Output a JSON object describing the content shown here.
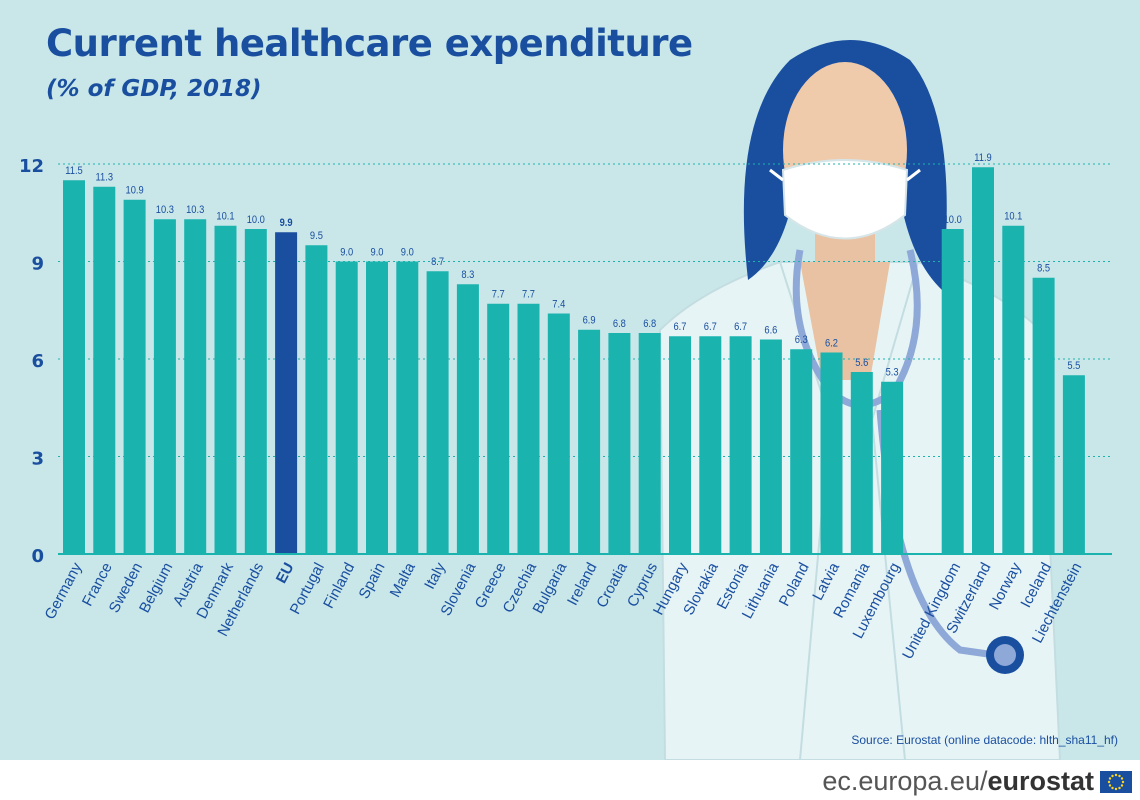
{
  "title": "Current healthcare expenditure",
  "subtitle": "(% of GDP, 2018)",
  "source": "Source:  Eurostat (online datacode: hlth_sha11_hf)",
  "footer": {
    "site": "ec.europa.eu/",
    "brand": "eurostat"
  },
  "colors": {
    "bar": "#1ab3ae",
    "highlight": "#1a4fa0",
    "text": "#1a4fa0",
    "background": "#c9e7e9"
  },
  "chart_data": {
    "type": "bar",
    "title": "Current healthcare expenditure",
    "subtitle": "(% of GDP, 2018)",
    "ylim": [
      0,
      12
    ],
    "yticks": [
      0,
      3,
      6,
      9,
      12
    ],
    "grid": true,
    "highlight": "EU",
    "categories": [
      "Germany",
      "France",
      "Sweden",
      "Belgium",
      "Austria",
      "Denmark",
      "Netherlands",
      "EU",
      "Portugal",
      "Finland",
      "Spain",
      "Malta",
      "Italy",
      "Slovenia",
      "Greece",
      "Czechia",
      "Bulgaria",
      "Ireland",
      "Croatia",
      "Cyprus",
      "Hungary",
      "Slovakia",
      "Estonia",
      "Lithuania",
      "Poland",
      "Latvia",
      "Romania",
      "Luxembourg",
      "United Kingdom",
      "Switzerland",
      "Norway",
      "Iceland",
      "Liechtenstein"
    ],
    "values": [
      11.5,
      11.3,
      10.9,
      10.3,
      10.3,
      10.1,
      10.0,
      9.9,
      9.5,
      9.0,
      9.0,
      9.0,
      8.7,
      8.3,
      7.7,
      7.7,
      7.4,
      6.9,
      6.8,
      6.8,
      6.7,
      6.7,
      6.7,
      6.6,
      6.3,
      6.2,
      5.6,
      5.3,
      10.0,
      11.9,
      10.1,
      8.5,
      5.5
    ],
    "value_labels": [
      "11.5",
      "11.3",
      "10.9",
      "10.3",
      "10.3",
      "10.1",
      "10.0",
      "9.9",
      "9.5",
      "9.0",
      "9.0",
      "9.0",
      "8.7",
      "8.3",
      "7.7",
      "7.7",
      "7.4",
      "6.9",
      "6.8",
      "6.8",
      "6.7",
      "6.7",
      "6.7",
      "6.6",
      "6.3",
      "6.2",
      "5.6",
      "5.3",
      "10.0",
      "11.9",
      "10.1",
      "8.5",
      "5.5"
    ]
  }
}
